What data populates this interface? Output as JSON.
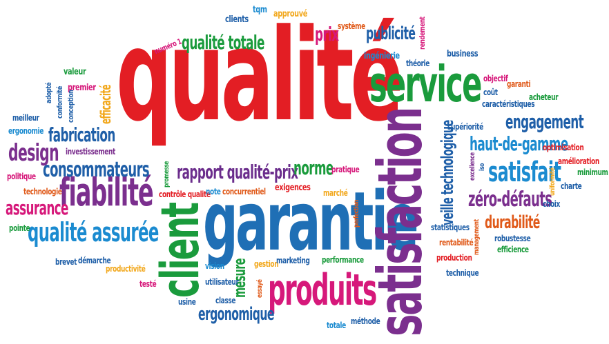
{
  "words": [
    {
      "text": "qualité",
      "color": "#e31e24"
    },
    {
      "text": "garantie",
      "color": "#1f6fb5"
    },
    {
      "text": "satisfaction",
      "color": "#7b2f8e"
    },
    {
      "text": "client",
      "color": "#1a9b3c"
    },
    {
      "text": "service",
      "color": "#1a9b3c"
    },
    {
      "text": "produits",
      "color": "#d6187a"
    },
    {
      "text": "fiabilité",
      "color": "#7b2f8e"
    },
    {
      "text": "qualité assurée",
      "color": "#1b8bd0"
    },
    {
      "text": "rapport qualité-prix",
      "color": "#6b2d8c"
    },
    {
      "text": "ergonomique",
      "color": "#1f5fa8"
    },
    {
      "text": "zéro-défauts",
      "color": "#7b2f8e"
    },
    {
      "text": "satisfait",
      "color": "#1b8bd0"
    },
    {
      "text": "haut-de-gamme",
      "color": "#1b8bd0"
    },
    {
      "text": "engagement",
      "color": "#1f5fa8"
    },
    {
      "text": "durabilité",
      "color": "#e05a1a"
    },
    {
      "text": "veille technologique",
      "color": "#1f5fa8"
    },
    {
      "text": "publicité",
      "color": "#1f5fa8"
    },
    {
      "text": "prix",
      "color": "#d6187a"
    },
    {
      "text": "qualité totale",
      "color": "#1a9b3c"
    },
    {
      "text": "norme",
      "color": "#1a9b3c"
    },
    {
      "text": "consommateurs",
      "color": "#1f5fa8"
    },
    {
      "text": "fabrication",
      "color": "#1f5fa8"
    },
    {
      "text": "design",
      "color": "#7b2f8e"
    },
    {
      "text": "assurance",
      "color": "#d6187a"
    },
    {
      "text": "efficacité",
      "color": "#f2a81d"
    },
    {
      "text": "mesure",
      "color": "#1a9b3c"
    },
    {
      "text": "clients",
      "color": "#1f5fa8"
    },
    {
      "text": "tqm",
      "color": "#1b8bd0"
    },
    {
      "text": "approuvé",
      "color": "#f2a81d"
    },
    {
      "text": "système",
      "color": "#e05a1a"
    },
    {
      "text": "rendement",
      "color": "#d6187a"
    },
    {
      "text": "ingénierie",
      "color": "#1b8bd0"
    },
    {
      "text": "théorie",
      "color": "#1f5fa8"
    },
    {
      "text": "business",
      "color": "#1f5fa8"
    },
    {
      "text": "numéro 1",
      "color": "#d6187a"
    },
    {
      "text": "valeur",
      "color": "#1a9b3c"
    },
    {
      "text": "premier",
      "color": "#d6187a"
    },
    {
      "text": "adopté",
      "color": "#1f5fa8"
    },
    {
      "text": "conformité",
      "color": "#1f5fa8"
    },
    {
      "text": "conception",
      "color": "#1f5fa8"
    },
    {
      "text": "meilleur",
      "color": "#1f5fa8"
    },
    {
      "text": "ergonomie",
      "color": "#1b8bd0"
    },
    {
      "text": "investissement",
      "color": "#7b2f8e"
    },
    {
      "text": "politique",
      "color": "#d6187a"
    },
    {
      "text": "technologie",
      "color": "#e05a1a"
    },
    {
      "text": "promesse",
      "color": "#1a9b3c"
    },
    {
      "text": "contrôle qualité",
      "color": "#e31e24"
    },
    {
      "text": "note",
      "color": "#1b8bd0"
    },
    {
      "text": "concurrentiel",
      "color": "#e05a1a"
    },
    {
      "text": "exigences",
      "color": "#e31e24"
    },
    {
      "text": "pratique",
      "color": "#d6187a"
    },
    {
      "text": "marché",
      "color": "#f2a81d"
    },
    {
      "text": "perfection",
      "color": "#e05a1a"
    },
    {
      "text": "pointe",
      "color": "#1a9b3c"
    },
    {
      "text": "brevet",
      "color": "#1f5fa8"
    },
    {
      "text": "démarche",
      "color": "#1f5fa8"
    },
    {
      "text": "productivité",
      "color": "#f2a81d"
    },
    {
      "text": "vision",
      "color": "#1b8bd0"
    },
    {
      "text": "gestion",
      "color": "#f2a81d"
    },
    {
      "text": "marketing",
      "color": "#1f5fa8"
    },
    {
      "text": "performance",
      "color": "#1a9b3c"
    },
    {
      "text": "utilisateur",
      "color": "#1f5fa8"
    },
    {
      "text": "classe",
      "color": "#1f5fa8"
    },
    {
      "text": "essayé",
      "color": "#e05a1a"
    },
    {
      "text": "testé",
      "color": "#d6187a"
    },
    {
      "text": "usine",
      "color": "#1f5fa8"
    },
    {
      "text": "totale",
      "color": "#1b8bd0"
    },
    {
      "text": "méthode",
      "color": "#1f5fa8"
    },
    {
      "text": "objectif",
      "color": "#d6187a"
    },
    {
      "text": "garanti",
      "color": "#e05a1a"
    },
    {
      "text": "coût",
      "color": "#1f5fa8"
    },
    {
      "text": "acheteur",
      "color": "#1a9b3c"
    },
    {
      "text": "caractéristiques",
      "color": "#1f5fa8"
    },
    {
      "text": "supériorité",
      "color": "#1f5fa8"
    },
    {
      "text": "optimisation",
      "color": "#e31e24"
    },
    {
      "text": "amélioration",
      "color": "#e31e24"
    },
    {
      "text": "minimum",
      "color": "#1a9b3c"
    },
    {
      "text": "excellence",
      "color": "#7b2f8e"
    },
    {
      "text": "iso",
      "color": "#1f5fa8"
    },
    {
      "text": "uniformité",
      "color": "#f2a81d"
    },
    {
      "text": "charte",
      "color": "#1f5fa8"
    },
    {
      "text": "choix",
      "color": "#1f5fa8"
    },
    {
      "text": "statistiques",
      "color": "#1f5fa8"
    },
    {
      "text": "rentabilité",
      "color": "#e05a1a"
    },
    {
      "text": "management",
      "color": "#e05a1a"
    },
    {
      "text": "robustesse",
      "color": "#1f5fa8"
    },
    {
      "text": "efficience",
      "color": "#1a9b3c"
    },
    {
      "text": "production",
      "color": "#e31e24"
    },
    {
      "text": "technique",
      "color": "#1f5fa8"
    }
  ]
}
